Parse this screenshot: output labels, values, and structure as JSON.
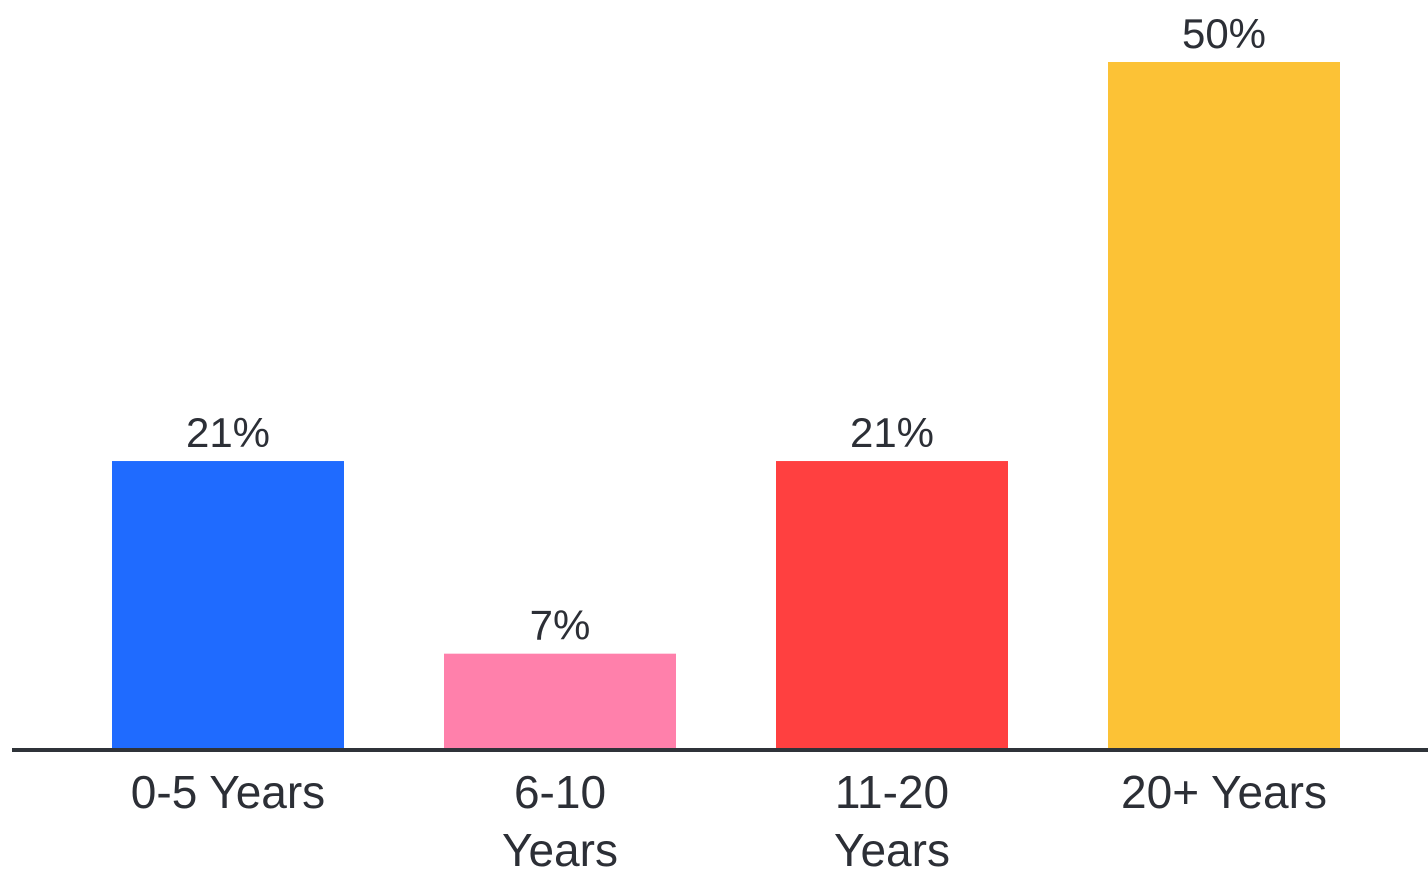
{
  "chart_data": {
    "type": "bar",
    "categories": [
      [
        "0-5 Years"
      ],
      [
        "6-10",
        "Years"
      ],
      [
        "11-20",
        "Years"
      ],
      [
        "20+ Years"
      ]
    ],
    "values": [
      21,
      7,
      21,
      50
    ],
    "value_labels": [
      "21%",
      "7%",
      "21%",
      "50%"
    ],
    "colors": [
      "#1f6bff",
      "#ff80ab",
      "#ff4040",
      "#fcc236"
    ],
    "axis_color": "#2f3339",
    "ylim": [
      0,
      50
    ],
    "grid": false,
    "title": "",
    "xlabel": "",
    "ylabel": ""
  }
}
